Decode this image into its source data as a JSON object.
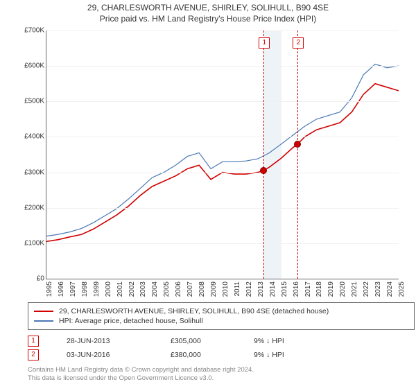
{
  "title_line1": "29, CHARLESWORTH AVENUE, SHIRLEY, SOLIHULL, B90 4SE",
  "title_line2": "Price paid vs. HM Land Registry's House Price Index (HPI)",
  "chart": {
    "type": "line",
    "background_color": "#ffffff",
    "grid_color": "#f0f0f0",
    "axis_color": "#666666",
    "ylim": [
      0,
      700000
    ],
    "xlim": [
      1995,
      2025
    ],
    "ytick_step": 100000,
    "ytick_format": "£K",
    "y_ticks": [
      "£0",
      "£100K",
      "£200K",
      "£300K",
      "£400K",
      "£500K",
      "£600K",
      "£700K"
    ],
    "x_ticks": [
      "1995",
      "1996",
      "1997",
      "1998",
      "1999",
      "2000",
      "2001",
      "2002",
      "2003",
      "2004",
      "2005",
      "2006",
      "2007",
      "2008",
      "2009",
      "2010",
      "2011",
      "2012",
      "2013",
      "2014",
      "2015",
      "2016",
      "2017",
      "2018",
      "2019",
      "2020",
      "2021",
      "2022",
      "2023",
      "2024",
      "2025"
    ],
    "shade_band": {
      "x_start": 2013.5,
      "x_end": 2015.0,
      "color": "#eef3f8"
    },
    "series": [
      {
        "name": "price_paid",
        "label": "29, CHARLESWORTH AVENUE, SHIRLEY, SOLIHULL, B90 4SE (detached house)",
        "color": "#d00000",
        "line_width": 1.6,
        "points": [
          [
            1995,
            105000
          ],
          [
            1996,
            110000
          ],
          [
            1997,
            118000
          ],
          [
            1998,
            125000
          ],
          [
            1999,
            140000
          ],
          [
            2000,
            160000
          ],
          [
            2001,
            180000
          ],
          [
            2002,
            205000
          ],
          [
            2003,
            235000
          ],
          [
            2004,
            260000
          ],
          [
            2005,
            275000
          ],
          [
            2006,
            290000
          ],
          [
            2007,
            310000
          ],
          [
            2008,
            320000
          ],
          [
            2009,
            280000
          ],
          [
            2010,
            300000
          ],
          [
            2011,
            295000
          ],
          [
            2012,
            295000
          ],
          [
            2013,
            300000
          ],
          [
            2013.5,
            305000
          ],
          [
            2014,
            315000
          ],
          [
            2015,
            340000
          ],
          [
            2016,
            370000
          ],
          [
            2016.4,
            380000
          ],
          [
            2017,
            400000
          ],
          [
            2018,
            420000
          ],
          [
            2019,
            430000
          ],
          [
            2020,
            440000
          ],
          [
            2021,
            470000
          ],
          [
            2022,
            520000
          ],
          [
            2023,
            550000
          ],
          [
            2024,
            540000
          ],
          [
            2025,
            530000
          ]
        ]
      },
      {
        "name": "hpi",
        "label": "HPI: Average price, detached house, Solihull",
        "color": "#4a78b5",
        "line_width": 1.2,
        "points": [
          [
            1995,
            120000
          ],
          [
            1996,
            125000
          ],
          [
            1997,
            132000
          ],
          [
            1998,
            142000
          ],
          [
            1999,
            158000
          ],
          [
            2000,
            178000
          ],
          [
            2001,
            198000
          ],
          [
            2002,
            225000
          ],
          [
            2003,
            255000
          ],
          [
            2004,
            285000
          ],
          [
            2005,
            300000
          ],
          [
            2006,
            320000
          ],
          [
            2007,
            345000
          ],
          [
            2008,
            355000
          ],
          [
            2009,
            310000
          ],
          [
            2010,
            330000
          ],
          [
            2011,
            330000
          ],
          [
            2012,
            332000
          ],
          [
            2013,
            338000
          ],
          [
            2014,
            355000
          ],
          [
            2015,
            380000
          ],
          [
            2016,
            405000
          ],
          [
            2017,
            430000
          ],
          [
            2018,
            450000
          ],
          [
            2019,
            460000
          ],
          [
            2020,
            470000
          ],
          [
            2021,
            510000
          ],
          [
            2022,
            575000
          ],
          [
            2023,
            605000
          ],
          [
            2024,
            595000
          ],
          [
            2025,
            600000
          ]
        ]
      }
    ],
    "markers": [
      {
        "id": "1",
        "x": 2013.5,
        "y": 305000
      },
      {
        "id": "2",
        "x": 2016.4,
        "y": 380000
      }
    ]
  },
  "legend": {
    "items": [
      {
        "color": "#d00000",
        "text": "29, CHARLESWORTH AVENUE, SHIRLEY, SOLIHULL, B90 4SE (detached house)"
      },
      {
        "color": "#4a78b5",
        "text": "HPI: Average price, detached house, Solihull"
      }
    ]
  },
  "events": [
    {
      "id": "1",
      "date": "28-JUN-2013",
      "price": "£305,000",
      "delta": "9% ↓ HPI"
    },
    {
      "id": "2",
      "date": "03-JUN-2016",
      "price": "£380,000",
      "delta": "9% ↓ HPI"
    }
  ],
  "footer": {
    "line1": "Contains HM Land Registry data © Crown copyright and database right 2024.",
    "line2": "This data is licensed under the Open Government Licence v3.0."
  }
}
